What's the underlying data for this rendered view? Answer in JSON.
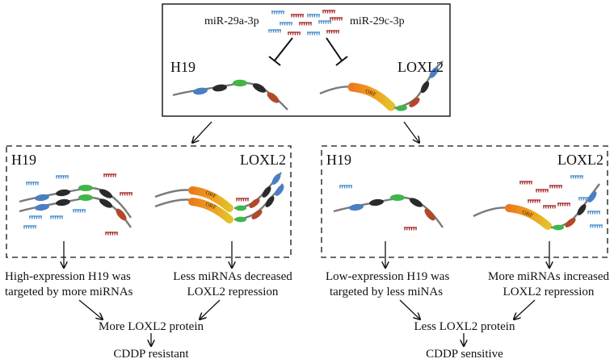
{
  "top_panel": {
    "mirna_left": "miR-29a-3p",
    "mirna_right": "miR-29c-3p",
    "gene_left": "H19",
    "gene_right": "LOXL2",
    "orf_label": "ORF"
  },
  "left_panel": {
    "gene_left": "H19",
    "gene_right": "LOXL2",
    "text_left": [
      "High-expression H19 was",
      "targeted by more miRNAs"
    ],
    "text_right": [
      "Less miRNAs decreased",
      "LOXL2 repression"
    ],
    "protein": "More LOXL2 protein",
    "outcome": "CDDP resistant"
  },
  "right_panel": {
    "gene_left": "H19",
    "gene_right": "LOXL2",
    "text_left": [
      "Low-expression H19 was",
      "targeted by less miNAs"
    ],
    "text_right": [
      "More miRNAs increased",
      "LOXL2 repression"
    ],
    "protein": "Less LOXL2 protein",
    "outcome": "CDDP sensitive"
  },
  "colors": {
    "mirna_blue": "#3d86c6",
    "mirna_red": "#a01c1c",
    "strand": "#7a7a7a",
    "exon_blue": "#4a7fc1",
    "exon_green": "#3fb54a",
    "exon_black": "#2a2a2a",
    "exon_red": "#b2482a",
    "orf_orange": "#ec7a1c",
    "orf_yellow": "#e2b824"
  }
}
